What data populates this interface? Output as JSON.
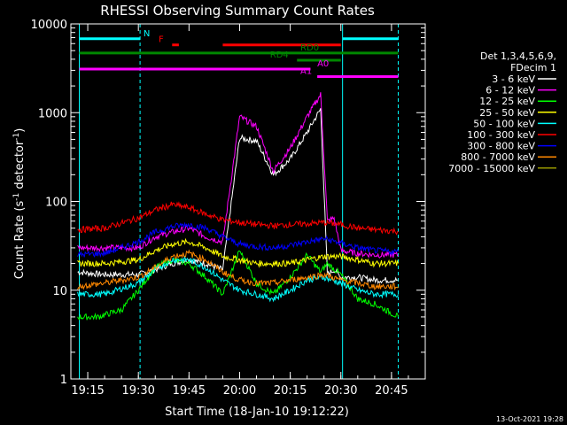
{
  "chart_data": {
    "type": "line",
    "title": "RHESSI Observing Summary Count Rates",
    "xlabel": "Start Time (18-Jan-10 19:12:22)",
    "ylabel_main": "Count Rate (s",
    "ylabel_sup1": "-1",
    "ylabel_mid": " detector",
    "ylabel_sup2": "-1",
    "ylabel_end": ")",
    "y_scale": "log",
    "ylim": [
      1,
      10000
    ],
    "xlim_minutes": [
      19.2,
      19.88
    ],
    "x_ticks": [
      {
        "label": "19:15",
        "t": 15
      },
      {
        "label": "19:30",
        "t": 30
      },
      {
        "label": "19:45",
        "t": 45
      },
      {
        "label": "20:00",
        "t": 60
      },
      {
        "label": "20:15",
        "t": 75
      },
      {
        "label": "20:30",
        "t": 90
      },
      {
        "label": "20:45",
        "t": 105
      }
    ],
    "y_ticks": [
      {
        "label": "1",
        "v": 1
      },
      {
        "label": "10",
        "v": 10
      },
      {
        "label": "100",
        "v": 100
      },
      {
        "label": "1000",
        "v": 1000
      },
      {
        "label": "10000",
        "v": 10000
      }
    ],
    "legend_header": [
      "Det 1,3,4,5,6,9,",
      "FDecim 1"
    ],
    "legend_placement": "right",
    "timestamp": "13-Oct-2021 19:28",
    "series": [
      {
        "name": "3 - 6 keV",
        "color": "#ffffff",
        "t": [
          12,
          20,
          30,
          35,
          40,
          45,
          50,
          55,
          60,
          65,
          70,
          75,
          80,
          84,
          86,
          88,
          90,
          95,
          100,
          107
        ],
        "v": [
          16,
          15,
          15,
          17,
          20,
          22,
          20,
          17,
          520,
          480,
          200,
          300,
          600,
          1100,
          15,
          17,
          14,
          14,
          13,
          13
        ]
      },
      {
        "name": "6 - 12 keV",
        "color": "#ff00ff",
        "t": [
          12,
          20,
          30,
          35,
          40,
          45,
          50,
          55,
          60,
          65,
          70,
          75,
          80,
          84,
          86,
          88,
          90,
          95,
          100,
          107
        ],
        "v": [
          30,
          30,
          30,
          40,
          45,
          50,
          40,
          35,
          900,
          700,
          220,
          400,
          900,
          1600,
          60,
          65,
          28,
          26,
          25,
          25
        ]
      },
      {
        "name": "12 - 25 keV",
        "color": "#00ff00",
        "t": [
          12,
          18,
          25,
          30,
          35,
          40,
          45,
          50,
          55,
          60,
          65,
          70,
          75,
          80,
          84,
          86,
          90,
          95,
          100,
          107
        ],
        "v": [
          5,
          5,
          6,
          10,
          18,
          22,
          20,
          14,
          9,
          28,
          12,
          9,
          14,
          25,
          16,
          20,
          15,
          8,
          7,
          5
        ]
      },
      {
        "name": "25 - 50 keV",
        "color": "#ffff00",
        "t": [
          12,
          20,
          30,
          35,
          40,
          45,
          50,
          55,
          60,
          65,
          70,
          75,
          80,
          85,
          90,
          95,
          100,
          107
        ],
        "v": [
          20,
          20,
          22,
          28,
          33,
          35,
          30,
          24,
          22,
          20,
          20,
          20,
          22,
          24,
          24,
          22,
          20,
          20
        ]
      },
      {
        "name": "50 - 100 keV",
        "color": "#00ffff",
        "t": [
          12,
          20,
          30,
          35,
          40,
          45,
          50,
          55,
          60,
          65,
          70,
          75,
          80,
          85,
          90,
          95,
          100,
          107
        ],
        "v": [
          9,
          9,
          12,
          17,
          22,
          22,
          18,
          13,
          10,
          9,
          8,
          10,
          13,
          14,
          12,
          10,
          9,
          9
        ]
      },
      {
        "name": "100 - 300 keV",
        "color": "#ff0000",
        "t": [
          12,
          20,
          30,
          35,
          40,
          45,
          50,
          55,
          60,
          65,
          70,
          75,
          80,
          85,
          90,
          95,
          100,
          107
        ],
        "v": [
          48,
          50,
          65,
          80,
          92,
          85,
          72,
          62,
          58,
          55,
          53,
          55,
          56,
          58,
          55,
          50,
          48,
          46
        ]
      },
      {
        "name": "300 - 800 keV",
        "color": "#0000ff",
        "t": [
          12,
          20,
          30,
          35,
          40,
          45,
          50,
          55,
          60,
          65,
          70,
          75,
          80,
          85,
          90,
          95,
          100,
          107
        ],
        "v": [
          25,
          26,
          35,
          45,
          52,
          55,
          50,
          40,
          33,
          31,
          30,
          32,
          35,
          38,
          34,
          30,
          28,
          27
        ]
      },
      {
        "name": "800 - 7000 keV",
        "color": "#ff8800",
        "t": [
          12,
          20,
          30,
          35,
          40,
          45,
          50,
          55,
          60,
          65,
          70,
          75,
          80,
          85,
          90,
          95,
          100,
          107
        ],
        "v": [
          11,
          12,
          14,
          18,
          24,
          26,
          22,
          16,
          13,
          12,
          12,
          13,
          14,
          15,
          13,
          12,
          11,
          11
        ]
      },
      {
        "name": "7000 - 15000 keV",
        "color": "#999900",
        "t": [],
        "v": []
      }
    ],
    "flag_bars": [
      {
        "label": "N",
        "color": "#00ffff",
        "t0": 12.5,
        "t1": 30.5,
        "v": 6800,
        "label_t": 31.5
      },
      {
        "label": "",
        "color": "#00ffff",
        "t0": 90.5,
        "t1": 107,
        "v": 6800,
        "label_t": null
      },
      {
        "label": "F",
        "color": "#ff0000",
        "t0": 40,
        "t1": 42,
        "v": 5800,
        "label_t": 36
      },
      {
        "label": "",
        "color": "#ff0000",
        "t0": 55,
        "t1": 90,
        "v": 5800,
        "label_t": null
      },
      {
        "label": "RD0",
        "color": "#008800",
        "t0": 12.5,
        "t1": 107,
        "v": 4700,
        "label_t": 78
      },
      {
        "label": "RD4",
        "color": "#008800",
        "t0": 77,
        "t1": 90,
        "v": 3900,
        "label_t": 69
      },
      {
        "label": "A0",
        "color": "#ff00ff",
        "t0": 12.5,
        "t1": 81,
        "v": 3100,
        "label_t": 83
      },
      {
        "label": "A1",
        "color": "#ff00ff",
        "t0": 83,
        "t1": 107,
        "v": 2550,
        "label_t": 78
      }
    ],
    "vlines": [
      {
        "t": 30.5,
        "color": "#00ffff",
        "dashed": true
      },
      {
        "t": 90.5,
        "color": "#00ffff",
        "dashed": false
      },
      {
        "t": 107,
        "color": "#00ffff",
        "dashed": true
      },
      {
        "t": 12.5,
        "color": "#00ffff",
        "dashed": false
      }
    ]
  }
}
